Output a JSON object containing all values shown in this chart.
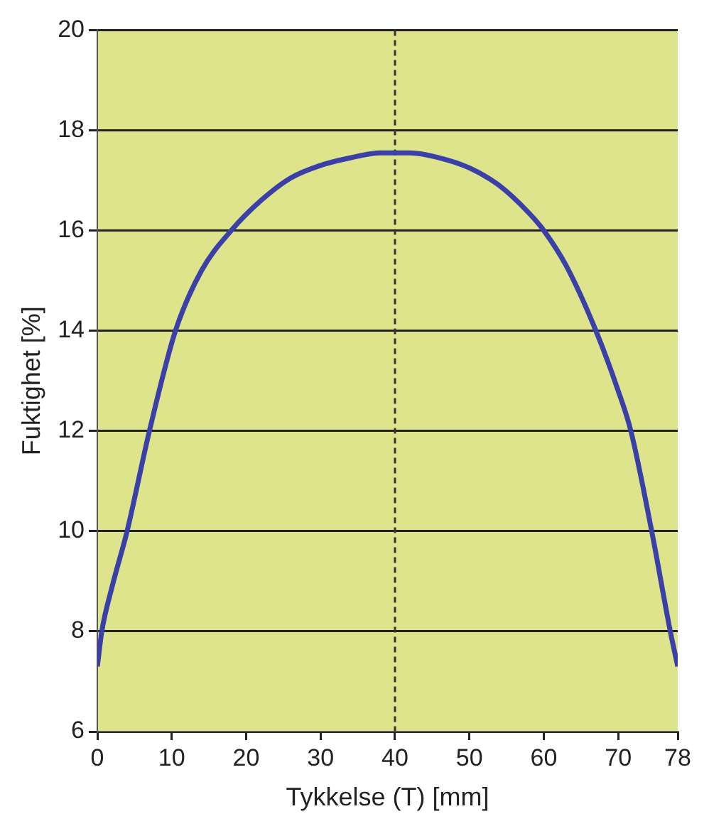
{
  "chart_data": {
    "type": "line",
    "xlabel": "Tykkelse (T) [mm]",
    "ylabel": "Fuktighet [%]",
    "xlim": [
      0,
      78
    ],
    "xticks": [
      0,
      10,
      20,
      30,
      40,
      50,
      60,
      70,
      78
    ],
    "ylim": [
      6,
      20
    ],
    "yticks": [
      6,
      8,
      10,
      12,
      14,
      16,
      18,
      20
    ],
    "grid": "y",
    "marker": "none",
    "line_style": "solid",
    "series": [
      {
        "color": "#3b3fa8",
        "x": [
          0,
          0.6,
          2,
          4,
          7,
          10.5,
          14,
          18,
          22,
          26,
          30,
          34,
          38,
          40,
          42,
          46,
          50,
          54,
          58,
          60,
          63,
          67,
          70,
          71.7,
          74.5,
          77,
          78
        ],
        "values": [
          7.3,
          8,
          8.9,
          10,
          12,
          14,
          15.2,
          16,
          16.6,
          17.05,
          17.3,
          17.45,
          17.55,
          17.55,
          17.55,
          17.45,
          17.25,
          16.9,
          16.35,
          16,
          15.3,
          14,
          12.8,
          12,
          10,
          8,
          7.3
        ]
      }
    ],
    "ref_lines": [
      {
        "axis": "x",
        "value": 40,
        "color": "#333333",
        "line_style": "dashed"
      }
    ]
  }
}
